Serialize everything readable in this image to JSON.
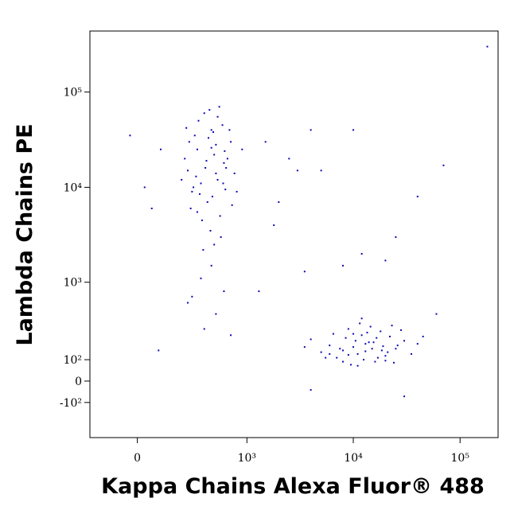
{
  "chart_data": {
    "type": "scatter",
    "x_label": "Kappa Chains Alexa Fluor® 488",
    "y_label": "Lambda Chains PE",
    "xscale": "biexponential",
    "yscale": "biexponential",
    "xlim": [
      -230,
      227000
    ],
    "ylim": [
      -339,
      437000
    ],
    "xticks": [
      0,
      {
        "value": 1000,
        "label": "10³"
      },
      {
        "value": 10000,
        "label": "10⁴"
      },
      {
        "value": 100000,
        "label": "10⁵"
      }
    ],
    "yticks": [
      {
        "value": -100,
        "label": "-10²"
      },
      0,
      {
        "value": 100,
        "label": "10²"
      },
      {
        "value": 1000,
        "label": "10³"
      },
      {
        "value": 10000,
        "label": "10⁴"
      },
      {
        "value": 100000,
        "label": "10⁵"
      }
    ],
    "color": "#0a0ab4",
    "x": [
      320,
      450,
      600,
      280,
      520,
      380,
      700,
      250,
      410,
      550,
      330,
      480,
      620,
      300,
      760,
      440,
      350,
      580,
      270,
      500,
      650,
      390,
      230,
      460,
      540,
      310,
      720,
      420,
      360,
      590,
      480,
      260,
      680,
      400,
      520,
      290,
      630,
      450,
      340,
      800,
      370,
      560,
      240,
      430,
      610,
      320,
      500,
      900,
      210,
      470,
      450,
      350,
      600,
      280,
      500,
      380,
      700,
      250,
      10000,
      14000,
      8000,
      20000,
      12000,
      6000,
      25000,
      9000,
      16000,
      11000,
      30000,
      7000,
      18000,
      13000,
      5000,
      22000,
      9500,
      15000,
      4000,
      35000,
      11500,
      17000,
      8500,
      28000,
      12500,
      6500,
      19000,
      10500,
      24000,
      14500,
      7500,
      21000,
      3500,
      13500,
      40000,
      9000,
      16500,
      11000,
      26000,
      5500,
      18500,
      12000,
      8000,
      45000,
      15500,
      10000,
      20000,
      6000,
      23000,
      13000,
      1500,
      2500,
      3000,
      4000,
      2000,
      5000,
      1800,
      12000,
      20000,
      25000,
      40000,
      70000,
      3500,
      8000,
      1300,
      10000,
      30000,
      4000,
      60000,
      180000,
      100,
      -30,
      30,
      60,
      90
    ],
    "y": [
      25000,
      40000,
      18000,
      9000,
      12000,
      60000,
      30000,
      15000,
      7000,
      5000,
      50000,
      22000,
      9500,
      35000,
      14000,
      3500,
      11000,
      45000,
      6000,
      28000,
      20000,
      16000,
      20000,
      8000,
      70000,
      13000,
      6500,
      33000,
      4500,
      11000,
      2500,
      30000,
      40000,
      19000,
      55000,
      10000,
      16000,
      26000,
      8500,
      9000,
      2200,
      3000,
      42000,
      65000,
      24000,
      5500,
      14000,
      25000,
      12000,
      38000,
      1500,
      1100,
      800,
      700,
      450,
      300,
      250,
      600,
      170,
      200,
      150,
      120,
      250,
      180,
      160,
      300,
      90,
      130,
      210,
      110,
      280,
      190,
      140,
      240,
      75,
      160,
      220,
      130,
      350,
      110,
      230,
      290,
      100,
      260,
      175,
      210,
      85,
      320,
      160,
      140,
      170,
      270,
      190,
      125,
      230,
      70,
      180,
      110,
      150,
      400,
      90,
      240,
      200,
      260,
      95,
      130,
      330,
      145,
      30000,
      20000,
      15000,
      40000,
      7000,
      15000,
      4000,
      2000,
      1700,
      3000,
      8000,
      17000,
      1300,
      1500,
      800,
      40000,
      -70,
      -40,
      450,
      300000,
      25000,
      35000,
      10000,
      6000,
      150
    ]
  }
}
